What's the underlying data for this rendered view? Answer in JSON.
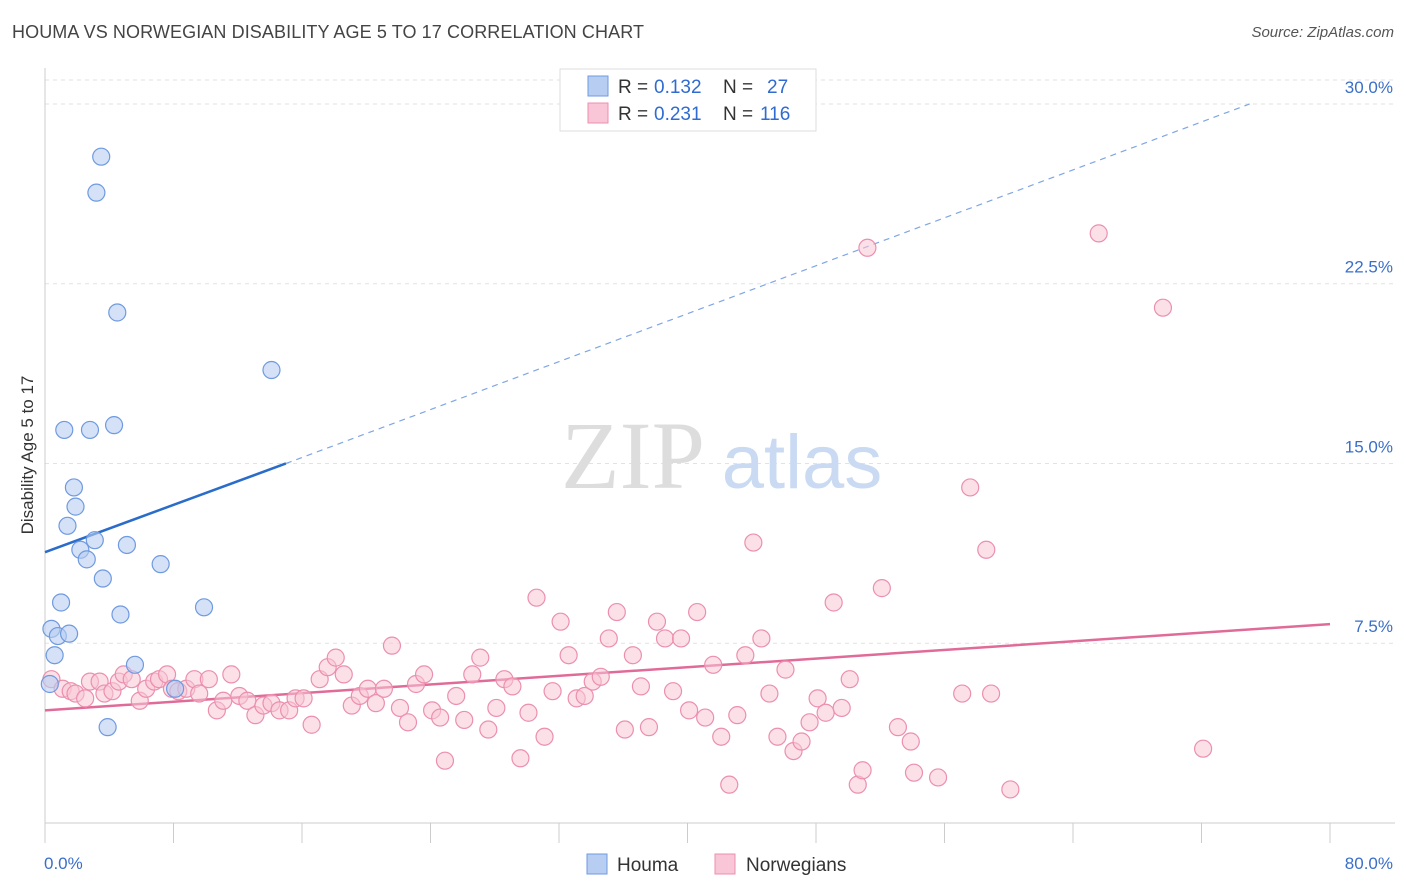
{
  "header": {
    "title": "HOUMA VS NORWEGIAN DISABILITY AGE 5 TO 17 CORRELATION CHART",
    "source": "Source: ZipAtlas.com"
  },
  "watermark": {
    "zip": "ZIP",
    "atlas": "atlas"
  },
  "legend": {
    "rows": [
      {
        "r_label": "R = ",
        "r_value": "0.132",
        "n_label": "N = ",
        "n_value": "27"
      },
      {
        "r_label": "R = ",
        "r_value": "0.231",
        "n_label": "N = ",
        "n_value": "116"
      }
    ]
  },
  "chart_data": {
    "type": "scatter",
    "title": "HOUMA VS NORWEGIAN DISABILITY AGE 5 TO 17 CORRELATION CHART",
    "ylabel": "Disability Age 5 to 17",
    "xlabel": "",
    "xlim": [
      0,
      80
    ],
    "ylim": [
      0,
      31
    ],
    "x_ticks": [
      "0.0%",
      "80.0%"
    ],
    "y_ticks": [
      {
        "value": 7.5,
        "label": "7.5%"
      },
      {
        "value": 15.0,
        "label": "15.0%"
      },
      {
        "value": 22.5,
        "label": "22.5%"
      },
      {
        "value": 30.0,
        "label": "30.0%"
      }
    ],
    "grid": true,
    "legend_position": "top-center",
    "colors": {
      "houma_fill": "#b7cdf2",
      "houma_stroke": "#6f9ae0",
      "houma_line": "#2a6cc9",
      "norw_fill": "#f8c6d6",
      "norw_stroke": "#ec8fae",
      "norw_line": "#e06b98"
    },
    "series": [
      {
        "name": "Houma",
        "trend": {
          "x0": 0,
          "y0": 11.3,
          "x1": 15,
          "y1": 15.0,
          "extend_to_x": 75,
          "extend_y": 30.0
        },
        "points": [
          [
            0.3,
            5.8
          ],
          [
            0.4,
            8.1
          ],
          [
            0.6,
            7.0
          ],
          [
            0.8,
            7.8
          ],
          [
            1.0,
            9.2
          ],
          [
            1.2,
            16.4
          ],
          [
            1.4,
            12.4
          ],
          [
            1.5,
            7.9
          ],
          [
            1.8,
            14.0
          ],
          [
            1.9,
            13.2
          ],
          [
            2.2,
            11.4
          ],
          [
            2.6,
            11.0
          ],
          [
            2.8,
            16.4
          ],
          [
            3.1,
            11.8
          ],
          [
            3.2,
            26.3
          ],
          [
            3.5,
            27.8
          ],
          [
            3.6,
            10.2
          ],
          [
            3.9,
            4.0
          ],
          [
            4.3,
            16.6
          ],
          [
            4.5,
            21.3
          ],
          [
            4.7,
            8.7
          ],
          [
            5.1,
            11.6
          ],
          [
            5.6,
            6.6
          ],
          [
            7.2,
            10.8
          ],
          [
            8.1,
            5.6
          ],
          [
            9.9,
            9.0
          ],
          [
            14.1,
            18.9
          ]
        ]
      },
      {
        "name": "Norwegians",
        "trend": {
          "x0": 0,
          "y0": 4.7,
          "x1": 80,
          "y1": 8.3
        },
        "points": [
          [
            0.4,
            6.0
          ],
          [
            1.1,
            5.6
          ],
          [
            1.6,
            5.5
          ],
          [
            1.9,
            5.4
          ],
          [
            2.5,
            5.2
          ],
          [
            2.8,
            5.9
          ],
          [
            3.4,
            5.9
          ],
          [
            3.7,
            5.4
          ],
          [
            4.2,
            5.5
          ],
          [
            4.6,
            5.9
          ],
          [
            4.9,
            6.2
          ],
          [
            5.4,
            6.0
          ],
          [
            5.9,
            5.1
          ],
          [
            6.3,
            5.6
          ],
          [
            6.8,
            5.9
          ],
          [
            7.1,
            6.0
          ],
          [
            7.6,
            6.2
          ],
          [
            7.9,
            5.6
          ],
          [
            8.3,
            5.5
          ],
          [
            8.8,
            5.6
          ],
          [
            9.3,
            6.0
          ],
          [
            9.6,
            5.4
          ],
          [
            10.2,
            6.0
          ],
          [
            10.7,
            4.7
          ],
          [
            11.1,
            5.1
          ],
          [
            11.6,
            6.2
          ],
          [
            12.1,
            5.3
          ],
          [
            12.6,
            5.1
          ],
          [
            13.1,
            4.5
          ],
          [
            13.6,
            4.9
          ],
          [
            14.1,
            5.0
          ],
          [
            14.6,
            4.7
          ],
          [
            15.2,
            4.7
          ],
          [
            15.6,
            5.2
          ],
          [
            16.1,
            5.2
          ],
          [
            16.6,
            4.1
          ],
          [
            17.1,
            6.0
          ],
          [
            17.6,
            6.5
          ],
          [
            18.1,
            6.9
          ],
          [
            18.6,
            6.2
          ],
          [
            19.1,
            4.9
          ],
          [
            19.6,
            5.3
          ],
          [
            20.1,
            5.6
          ],
          [
            20.6,
            5.0
          ],
          [
            21.1,
            5.6
          ],
          [
            21.6,
            7.4
          ],
          [
            22.1,
            4.8
          ],
          [
            22.6,
            4.2
          ],
          [
            23.1,
            5.8
          ],
          [
            23.6,
            6.2
          ],
          [
            24.1,
            4.7
          ],
          [
            24.6,
            4.4
          ],
          [
            24.9,
            2.6
          ],
          [
            25.6,
            5.3
          ],
          [
            26.1,
            4.3
          ],
          [
            26.6,
            6.2
          ],
          [
            27.1,
            6.9
          ],
          [
            27.6,
            3.9
          ],
          [
            28.1,
            4.8
          ],
          [
            28.6,
            6.0
          ],
          [
            29.1,
            5.7
          ],
          [
            29.6,
            2.7
          ],
          [
            30.1,
            4.6
          ],
          [
            30.6,
            9.4
          ],
          [
            31.1,
            3.6
          ],
          [
            31.6,
            5.5
          ],
          [
            32.1,
            8.4
          ],
          [
            32.6,
            7.0
          ],
          [
            33.1,
            5.2
          ],
          [
            33.6,
            5.3
          ],
          [
            34.1,
            5.9
          ],
          [
            34.6,
            6.1
          ],
          [
            35.1,
            7.7
          ],
          [
            35.6,
            8.8
          ],
          [
            36.1,
            3.9
          ],
          [
            36.6,
            7.0
          ],
          [
            37.1,
            5.7
          ],
          [
            37.6,
            4.0
          ],
          [
            38.1,
            8.4
          ],
          [
            38.6,
            7.7
          ],
          [
            39.1,
            5.5
          ],
          [
            39.6,
            7.7
          ],
          [
            40.1,
            4.7
          ],
          [
            40.6,
            8.8
          ],
          [
            41.1,
            4.4
          ],
          [
            41.6,
            6.6
          ],
          [
            42.1,
            3.6
          ],
          [
            42.6,
            1.6
          ],
          [
            43.1,
            4.5
          ],
          [
            43.6,
            7.0
          ],
          [
            44.1,
            11.7
          ],
          [
            44.6,
            7.7
          ],
          [
            45.1,
            5.4
          ],
          [
            45.6,
            3.6
          ],
          [
            46.1,
            6.4
          ],
          [
            46.6,
            3.0
          ],
          [
            47.1,
            3.4
          ],
          [
            47.6,
            4.2
          ],
          [
            48.1,
            5.2
          ],
          [
            48.6,
            4.6
          ],
          [
            49.1,
            9.2
          ],
          [
            49.6,
            4.8
          ],
          [
            50.1,
            6.0
          ],
          [
            50.6,
            1.6
          ],
          [
            50.9,
            2.2
          ],
          [
            51.2,
            24.0
          ],
          [
            52.1,
            9.8
          ],
          [
            53.1,
            4.0
          ],
          [
            53.9,
            3.4
          ],
          [
            54.1,
            2.1
          ],
          [
            55.6,
            1.9
          ],
          [
            57.1,
            5.4
          ],
          [
            57.6,
            14.0
          ],
          [
            58.6,
            11.4
          ],
          [
            58.9,
            5.4
          ],
          [
            60.1,
            1.4
          ],
          [
            65.6,
            24.6
          ],
          [
            69.6,
            21.5
          ],
          [
            72.1,
            3.1
          ]
        ]
      }
    ]
  },
  "bottom_legend": {
    "items": [
      {
        "label": "Houma"
      },
      {
        "label": "Norwegians"
      }
    ]
  }
}
